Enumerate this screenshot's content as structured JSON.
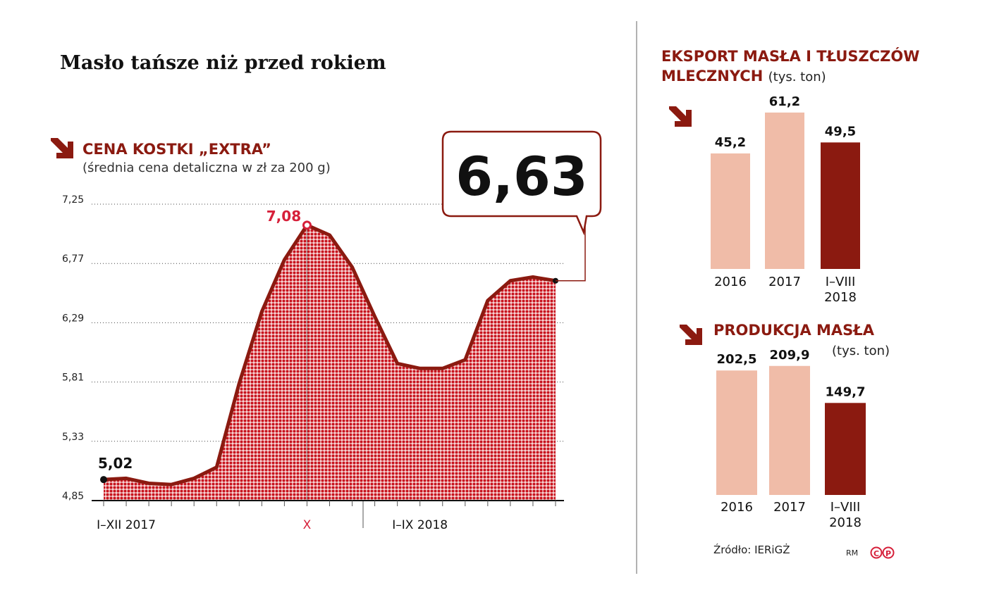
{
  "title": "Masło tańsze niż przed rokiem",
  "source": "Źródło: IERiGŻ",
  "credit": "RM",
  "logo": [
    "C",
    "P"
  ],
  "chart_data": [
    {
      "type": "area",
      "title": "CENA KOSTKI „EXTRA”",
      "subtitle": "(średnia cena detaliczna w zł za 200 g)",
      "categories": [
        null,
        "I–XII 2017",
        null,
        null,
        null,
        null,
        null,
        null,
        null,
        "X",
        null,
        null,
        null,
        null,
        "I–IX 2018",
        null,
        null,
        null,
        null,
        null,
        null
      ],
      "values": [
        5.02,
        5.03,
        4.99,
        4.98,
        5.03,
        5.12,
        5.8,
        6.38,
        6.8,
        7.08,
        7.0,
        6.74,
        6.34,
        5.96,
        5.92,
        5.92,
        5.99,
        6.47,
        6.63,
        6.66,
        6.63
      ],
      "value_labels": [
        "5,02",
        null,
        null,
        null,
        null,
        null,
        null,
        null,
        null,
        "7,08",
        null,
        null,
        null,
        null,
        null,
        null,
        null,
        null,
        null,
        null,
        "6,63"
      ],
      "ylim": [
        4.85,
        7.25
      ],
      "yticks": [
        {
          "value": 4.85,
          "label": "4,85"
        },
        {
          "value": 5.33,
          "label": "5,33"
        },
        {
          "value": 5.81,
          "label": "5,81"
        },
        {
          "value": 6.29,
          "label": "6,29"
        },
        {
          "value": 6.77,
          "label": "6,77"
        },
        {
          "value": 7.25,
          "label": "7,25"
        }
      ],
      "grid": true,
      "color": "#8b1a10",
      "highlight_color": "#d6203a"
    },
    {
      "type": "bar",
      "title": "EKSPORT MASŁA I TŁUSZCZÓW MLECZNYCH",
      "unit": "(tys. ton)",
      "categories": [
        "2016",
        "2017",
        "I–VIII 2018"
      ],
      "values": [
        45.2,
        61.2,
        49.5
      ],
      "value_labels": [
        "45,2",
        "61,2",
        "49,5"
      ],
      "colors": [
        "#f0bca8",
        "#f0bca8",
        "#8b1a10"
      ]
    },
    {
      "type": "bar",
      "title": "PRODUKCJA MASŁA",
      "unit": "(tys. ton)",
      "categories": [
        "2016",
        "2017",
        "I–VIII 2018"
      ],
      "values": [
        202.5,
        209.9,
        149.7
      ],
      "value_labels": [
        "202,5",
        "209,9",
        "149,7"
      ],
      "colors": [
        "#f0bca8",
        "#f0bca8",
        "#8b1a10"
      ]
    }
  ]
}
